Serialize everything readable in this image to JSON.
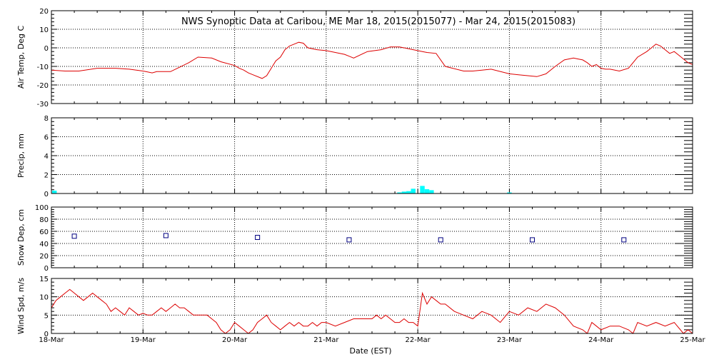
{
  "chart_data": {
    "title": "NWS Synoptic Data at Caribou, ME   Mar 18, 2015(2015077) - Mar 24, 2015(2015083)",
    "xlabel": "Date (EST)",
    "x_days": [
      "18-Mar",
      "19-Mar",
      "20-Mar",
      "21-Mar",
      "22-Mar",
      "23-Mar",
      "24-Mar",
      "25-Mar"
    ],
    "xlim": [
      0,
      7
    ],
    "grid": true,
    "panels": [
      {
        "type": "line",
        "ylabel": "Air Temp, Deg C",
        "ylim": [
          -30,
          20
        ],
        "yticks": [
          -30,
          -20,
          -10,
          0,
          10,
          20
        ],
        "color": "#dd0000",
        "series": [
          {
            "x": [
              0,
              0.15,
              0.3,
              0.5,
              0.7,
              0.85,
              1.0,
              1.05,
              1.1,
              1.15,
              1.3,
              1.5,
              1.6,
              1.75,
              1.85,
              2.0,
              2.05,
              2.1,
              2.15,
              2.2,
              2.3,
              2.35,
              2.4,
              2.45,
              2.5,
              2.55,
              2.6,
              2.65,
              2.7,
              2.75,
              2.8,
              2.9,
              3.0,
              3.1,
              3.2,
              3.25,
              3.3,
              3.45,
              3.6,
              3.7,
              3.8,
              3.9,
              3.95,
              4.0,
              4.05,
              4.1,
              4.2,
              4.3,
              4.5,
              4.6,
              4.7,
              4.8,
              5.0,
              5.1,
              5.2,
              5.3,
              5.4,
              5.5,
              5.6,
              5.7,
              5.75,
              5.8,
              5.85,
              5.9,
              5.95,
              6.0,
              6.05,
              6.1,
              6.2,
              6.3,
              6.4,
              6.5,
              6.55,
              6.6,
              6.65,
              6.7,
              6.75,
              6.8,
              6.85,
              6.9,
              6.95,
              7.0
            ],
            "y": [
              -12,
              -12.5,
              -12.5,
              -11,
              -11,
              -11.5,
              -12.5,
              -13,
              -13.5,
              -12.8,
              -12.8,
              -8,
              -5,
              -5.5,
              -7.5,
              -9.5,
              -11,
              -12,
              -13.5,
              -14.5,
              -16.5,
              -15,
              -11,
              -7,
              -5,
              -1,
              1,
              2,
              3,
              2.5,
              0,
              -1,
              -1.5,
              -2.5,
              -3.5,
              -4.5,
              -5.5,
              -2,
              -1,
              0.5,
              0.5,
              -0.5,
              -1,
              -1.5,
              -2,
              -2.5,
              -3,
              -10,
              -12.5,
              -12.5,
              -12,
              -11.5,
              -14,
              -14.5,
              -15,
              -15.5,
              -14,
              -10,
              -6.5,
              -5.5,
              -6,
              -6.5,
              -8,
              -10,
              -9,
              -11,
              -11.5,
              -11.5,
              -12.5,
              -11,
              -5,
              -2,
              0,
              2,
              1,
              -1,
              -3,
              -2,
              -4,
              -6,
              -8,
              -9
            ]
          }
        ]
      },
      {
        "type": "bar",
        "ylabel": "Precip, mm",
        "ylim": [
          0,
          8
        ],
        "yticks": [
          0,
          2,
          4,
          6,
          8
        ],
        "color": "#00ffff",
        "series": [
          {
            "x": [
              0,
              3.8,
              3.85,
              3.9,
              3.95,
              4.05,
              4.1,
              4.15,
              5.0
            ],
            "y": [
              0.3,
              0.1,
              0.2,
              0.25,
              0.5,
              0.8,
              0.45,
              0.35,
              0.1
            ]
          }
        ]
      },
      {
        "type": "scatter",
        "ylabel": "Snow Dep, cm",
        "ylim": [
          0,
          100
        ],
        "yticks": [
          0,
          20,
          40,
          60,
          80,
          100
        ],
        "color": "#000080",
        "series": [
          {
            "x": [
              0.25,
              1.25,
              2.25,
              3.25,
              4.25,
              5.25,
              6.25
            ],
            "y": [
              52,
              53,
              50,
              46,
              46,
              46,
              46
            ]
          }
        ]
      },
      {
        "type": "line",
        "ylabel": "Wind Spd, m/s",
        "ylim": [
          0,
          15
        ],
        "yticks": [
          0,
          5,
          10,
          15
        ],
        "color": "#dd0000",
        "series": [
          {
            "x": [
              0,
              0.05,
              0.1,
              0.15,
              0.2,
              0.25,
              0.3,
              0.35,
              0.4,
              0.45,
              0.5,
              0.55,
              0.6,
              0.65,
              0.7,
              0.75,
              0.8,
              0.85,
              0.9,
              0.95,
              1.0,
              1.05,
              1.1,
              1.15,
              1.2,
              1.25,
              1.3,
              1.35,
              1.4,
              1.45,
              1.5,
              1.55,
              1.6,
              1.65,
              1.7,
              1.75,
              1.8,
              1.85,
              1.9,
              1.95,
              2.0,
              2.05,
              2.1,
              2.15,
              2.2,
              2.25,
              2.3,
              2.35,
              2.4,
              2.45,
              2.5,
              2.55,
              2.6,
              2.65,
              2.7,
              2.75,
              2.8,
              2.85,
              2.9,
              2.95,
              3.0,
              3.1,
              3.2,
              3.3,
              3.4,
              3.5,
              3.55,
              3.6,
              3.65,
              3.7,
              3.75,
              3.8,
              3.85,
              3.9,
              3.95,
              4.0,
              4.05,
              4.1,
              4.15,
              4.2,
              4.25,
              4.3,
              4.4,
              4.5,
              4.6,
              4.7,
              4.8,
              4.9,
              5.0,
              5.1,
              5.2,
              5.3,
              5.4,
              5.5,
              5.6,
              5.7,
              5.8,
              5.85,
              5.9,
              5.95,
              6.0,
              6.1,
              6.2,
              6.3,
              6.35,
              6.4,
              6.5,
              6.6,
              6.7,
              6.8,
              6.9,
              6.95,
              7.0
            ],
            "y": [
              7,
              9,
              10,
              11,
              12,
              11,
              10,
              9,
              10,
              11,
              10,
              9,
              8,
              6,
              7,
              6,
              5,
              7,
              6,
              5,
              5.5,
              5,
              5,
              6,
              7,
              6,
              7,
              8,
              7,
              7,
              6,
              5,
              5,
              5,
              5,
              4,
              3,
              1,
              0,
              1,
              3,
              2,
              1,
              0,
              1,
              3,
              4,
              5,
              3,
              2,
              1,
              2,
              3,
              2,
              3,
              2,
              2,
              3,
              2,
              3,
              3,
              2,
              3,
              4,
              4,
              4,
              5,
              4,
              5,
              4,
              3,
              3,
              4,
              3,
              3,
              2,
              11,
              8,
              10,
              9,
              8,
              8,
              6,
              5,
              4,
              6,
              5,
              3,
              6,
              5,
              7,
              6,
              8,
              7,
              5,
              2,
              1,
              0,
              3,
              2,
              1,
              2,
              2,
              1,
              0,
              3,
              2,
              3,
              2,
              3,
              0,
              1,
              0
            ]
          }
        ]
      }
    ]
  }
}
